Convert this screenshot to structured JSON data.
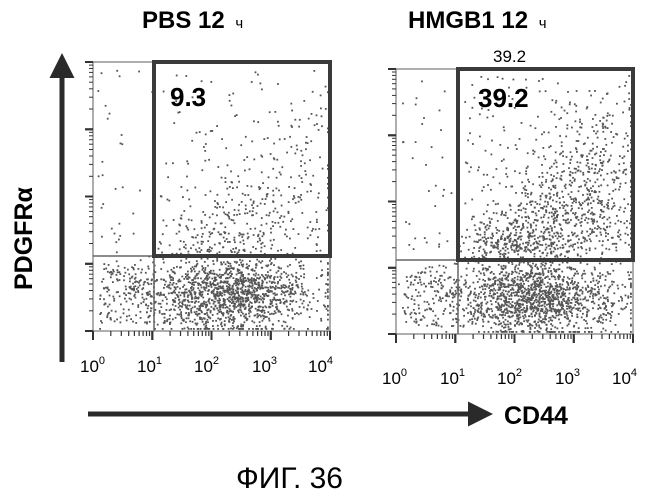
{
  "chart_data": [
    {
      "type": "scatter",
      "panel_id": "pbs",
      "title": "PBS 12",
      "title_unit": "ч",
      "x_scale": "log",
      "y_scale": "log",
      "xlim": [
        1,
        10000
      ],
      "x_ticks": [
        {
          "base": "10",
          "exp": "0"
        },
        {
          "base": "10",
          "exp": "1"
        },
        {
          "base": "10",
          "exp": "2"
        },
        {
          "base": "10",
          "exp": "3"
        },
        {
          "base": "10",
          "exp": "4"
        }
      ],
      "gate_label": "9.3",
      "gate_percent": 9.3,
      "above_label": "",
      "quadrant_split": {
        "x": 10,
        "y_fraction": 0.23
      },
      "grid": false,
      "density": {
        "upper_gate": 0.35,
        "low_cluster": 1.0
      }
    },
    {
      "type": "scatter",
      "panel_id": "hmgb1",
      "title": "HMGB1 12",
      "title_unit": "ч",
      "x_scale": "log",
      "y_scale": "log",
      "xlim": [
        1,
        10000
      ],
      "x_ticks": [
        {
          "base": "10",
          "exp": "0"
        },
        {
          "base": "10",
          "exp": "1"
        },
        {
          "base": "10",
          "exp": "2"
        },
        {
          "base": "10",
          "exp": "3"
        },
        {
          "base": "10",
          "exp": "4"
        }
      ],
      "gate_label": "39.2",
      "gate_percent": 39.2,
      "above_label": "39.2",
      "quadrant_split": {
        "x": 10,
        "y_fraction": 0.23
      },
      "grid": false,
      "density": {
        "upper_gate": 1.0,
        "low_cluster": 1.0
      }
    }
  ],
  "axes": {
    "y_label": "PDGFRα",
    "x_label": "CD44"
  },
  "caption": "ФИГ. 36",
  "colors": {
    "ink": "#1a1a1a",
    "gate": "#3a3a3a",
    "dots": "#555555",
    "arrow": "#2a2a2a"
  }
}
